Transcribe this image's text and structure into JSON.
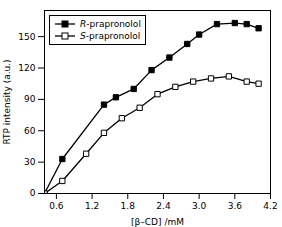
{
  "chart_data": {
    "type": "line",
    "xlabel": "[β–CD] /mM",
    "ylabel": "RTP intensity (a.u.)",
    "series": [
      {
        "name": "R-prapronolol",
        "color": "#000000",
        "marker": "square",
        "line_style": "solid",
        "x": [
          0.4,
          0.7,
          1.4,
          1.6,
          1.9,
          2.2,
          2.5,
          2.8,
          3.0,
          3.3,
          3.6,
          3.8,
          4.0
        ],
        "values": [
          0,
          33,
          85,
          92,
          100,
          118,
          130,
          143,
          152,
          162,
          163,
          162,
          158
        ]
      },
      {
        "name": "S-prapronolol",
        "color": "#000000",
        "marker": "open_square",
        "line_style": "solid",
        "x": [
          0.4,
          0.7,
          1.1,
          1.4,
          1.7,
          2.0,
          2.3,
          2.6,
          2.9,
          3.2,
          3.5,
          3.8,
          4.0
        ],
        "values": [
          0,
          12,
          38,
          58,
          72,
          82,
          95,
          102,
          107,
          110,
          112,
          107,
          105
        ]
      }
    ],
    "xlim": [
      0.4,
      4.2
    ],
    "ylim": [
      0,
      175
    ],
    "xticks": [
      0.6,
      1.2,
      1.8,
      2.4,
      {
        "value": 3,
        "label": "3.0"
      },
      3.6,
      4.2
    ],
    "yticks": [
      0,
      30,
      60,
      90,
      120,
      150
    ],
    "grid": false,
    "legend": "upper left"
  }
}
